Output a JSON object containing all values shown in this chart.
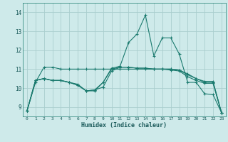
{
  "xlabel": "Humidex (Indice chaleur)",
  "x": [
    0,
    1,
    2,
    3,
    4,
    5,
    6,
    7,
    8,
    9,
    10,
    11,
    12,
    13,
    14,
    15,
    16,
    17,
    18,
    19,
    20,
    21,
    22,
    23
  ],
  "line1": [
    8.8,
    10.4,
    10.5,
    10.4,
    10.4,
    10.3,
    10.2,
    9.85,
    9.85,
    10.3,
    11.05,
    11.15,
    12.4,
    12.85,
    13.85,
    11.7,
    12.65,
    12.65,
    11.8,
    10.3,
    10.3,
    9.7,
    9.65,
    8.7
  ],
  "line2": [
    8.8,
    10.4,
    10.5,
    10.4,
    10.4,
    10.3,
    10.15,
    9.85,
    9.9,
    10.3,
    11.0,
    11.1,
    11.1,
    11.05,
    11.05,
    11.0,
    11.0,
    11.0,
    10.95,
    10.7,
    10.5,
    10.3,
    10.3,
    8.7
  ],
  "line3": [
    8.8,
    10.4,
    10.5,
    10.4,
    10.4,
    10.3,
    10.15,
    9.85,
    9.9,
    10.05,
    10.9,
    11.1,
    11.1,
    11.05,
    11.05,
    11.0,
    11.0,
    10.95,
    10.9,
    10.6,
    10.4,
    10.25,
    10.25,
    8.7
  ],
  "line4": [
    8.8,
    10.3,
    11.1,
    11.1,
    11.0,
    11.0,
    11.0,
    11.0,
    11.0,
    11.0,
    11.0,
    11.0,
    11.0,
    11.0,
    11.0,
    11.0,
    11.0,
    11.0,
    10.95,
    10.75,
    10.5,
    10.35,
    10.35,
    8.7
  ],
  "bg_color": "#ceeaea",
  "line_color": "#1a7a6e",
  "grid_color": "#aacece",
  "ylim": [
    8.5,
    14.5
  ],
  "xlim": [
    -0.5,
    23.5
  ],
  "yticks": [
    9,
    10,
    11,
    12,
    13,
    14
  ],
  "xticks": [
    0,
    1,
    2,
    3,
    4,
    5,
    6,
    7,
    8,
    9,
    10,
    11,
    12,
    13,
    14,
    15,
    16,
    17,
    18,
    19,
    20,
    21,
    22,
    23
  ]
}
